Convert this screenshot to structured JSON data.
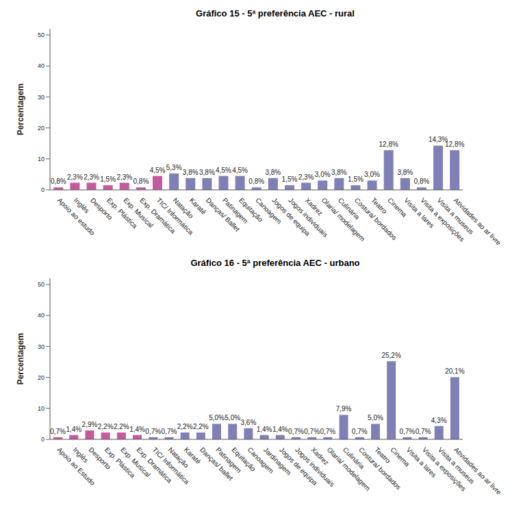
{
  "chart_data": [
    {
      "type": "bar",
      "title": "Gráfico 15 - 5ª preferência AEC - rural",
      "y_label": "Percentagem",
      "categories": [
        "Apoio ao estudo",
        "Inglês",
        "Desporto",
        "Exp. Plástica",
        "Exp. Musical",
        "Exp. Dramática",
        "TIC/ Informática",
        "Natação",
        "Karaté",
        "Danças/ Ballet",
        "Patinagem",
        "Equitação",
        "Canoagem",
        "Jogos de equipa",
        "Jogos individuais",
        "Xadrez",
        "Olaria/ modelagem",
        "Culinária",
        "Costura/ bordados",
        "Teatro",
        "Cinema",
        "Visita a lares",
        "Visita a exposições",
        "Visita a museus",
        "Atividades ao ar livre"
      ],
      "values": [
        0.8,
        2.3,
        2.3,
        1.5,
        2.3,
        0.8,
        4.5,
        5.3,
        3.8,
        3.8,
        4.5,
        4.5,
        0.8,
        3.8,
        1.5,
        2.3,
        3.0,
        3.8,
        1.5,
        3.0,
        12.8,
        3.8,
        0.8,
        14.3,
        12.8
      ],
      "value_labels": [
        "0,8%",
        "2,3%",
        "2,3%",
        "1,5%",
        "2,3%",
        "0,8%",
        "4,5%",
        "5,3%",
        "3,8%",
        "3,8%",
        "4,5%",
        "4,5%",
        "0,8%",
        "3,8%",
        "1,5%",
        "2,3%",
        "3,0%",
        "3,8%",
        "1,5%",
        "3,0%",
        "12,8%",
        "3,8%",
        "0,8%",
        "14,3%",
        "12,8%"
      ],
      "colors": [
        "#c55a9e",
        "#c55a9e",
        "#c55a9e",
        "#c55a9e",
        "#c55a9e",
        "#c55a9e",
        "#c55a9e",
        "#7f80b5",
        "#7f80b5",
        "#7f80b5",
        "#7f80b5",
        "#7f80b5",
        "#7f80b5",
        "#7f80b5",
        "#7f80b5",
        "#7f80b5",
        "#7f80b5",
        "#7f80b5",
        "#7f80b5",
        "#7f80b5",
        "#7f80b5",
        "#7f80b5",
        "#7f80b5",
        "#7f80b5",
        "#7f80b5"
      ],
      "ylim": [
        0,
        52
      ],
      "yticks": [
        0,
        10,
        20,
        30,
        40,
        50
      ],
      "grid": false,
      "data_labels": true
    },
    {
      "type": "bar",
      "title": "Gráfico 16 - 5ª preferência AEC - urbano",
      "y_label": "Percentagem",
      "categories": [
        "Apoio ao Estudo",
        "Inglês",
        "Desporto",
        "Exp. Plástica",
        "Exp. Musical",
        "Exp. Dramática",
        "TIC/ Informática",
        "Natação",
        "Karaté",
        "Danças/ ballet",
        "Patinagem",
        "Equitação",
        "Canoagem",
        "Jardinagem",
        "Jogos de equipa",
        "Jogos individuais",
        "Xadrez",
        "Olaria/ modelagem",
        "Culinária",
        "Costura/ bordados",
        "Teatro",
        "Cinema",
        "Visita a lares",
        "Visita a exposições",
        "Visita a museus",
        "Atividades ao ar livre"
      ],
      "values": [
        0.7,
        1.4,
        2.9,
        2.2,
        2.2,
        1.4,
        0.7,
        0.7,
        2.2,
        2.2,
        5.0,
        5.0,
        3.6,
        1.4,
        1.4,
        0.7,
        0.7,
        0.7,
        7.9,
        0.7,
        5.0,
        25.2,
        0.7,
        0.7,
        4.3,
        20.1
      ],
      "value_labels": [
        "0,7%",
        "1,4%",
        "2,9%",
        "2,2%",
        "2,2%",
        "1,4%",
        "0,7%",
        "0,7%",
        "2,2%",
        "2,2%",
        "5,0%",
        "5,0%",
        "3,6%",
        "1,4%",
        "1,4%",
        "0,7%",
        "0,7%",
        "0,7%",
        "7,9%",
        "0,7%",
        "5,0%",
        "25,2%",
        "0,7%",
        "0,7%",
        "4,3%",
        "20,1%"
      ],
      "colors": [
        "#c55a9e",
        "#c55a9e",
        "#c55a9e",
        "#c55a9e",
        "#c55a9e",
        "#c55a9e",
        "#7f80b5",
        "#7f80b5",
        "#7f80b5",
        "#7f80b5",
        "#7f80b5",
        "#7f80b5",
        "#7f80b5",
        "#7f80b5",
        "#7f80b5",
        "#7f80b5",
        "#7f80b5",
        "#7f80b5",
        "#7f80b5",
        "#7f80b5",
        "#7f80b5",
        "#7f80b5",
        "#7f80b5",
        "#7f80b5",
        "#7f80b5",
        "#7f80b5"
      ],
      "ylim": [
        0,
        52
      ],
      "yticks": [
        0,
        10,
        20,
        30,
        40,
        50
      ],
      "grid": false,
      "data_labels": true
    }
  ]
}
